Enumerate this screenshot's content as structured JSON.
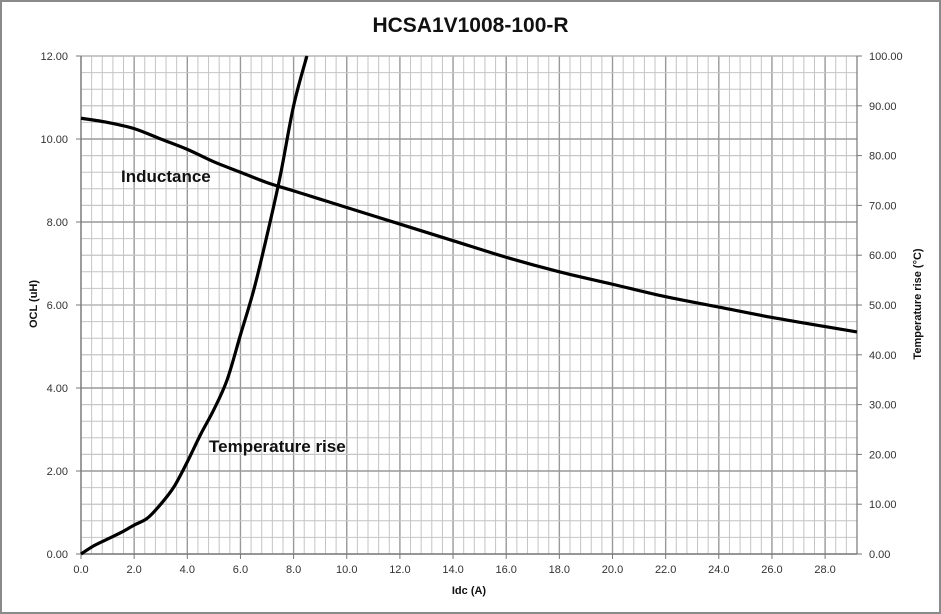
{
  "chart_data": {
    "type": "line",
    "title": "HCSA1V1008-100-R",
    "xlabel": "Idc (A)",
    "ylabel": "OCL (uH)",
    "y2label": "Temperature rise (°C)",
    "xlim": [
      0,
      29.2
    ],
    "ylim": [
      0,
      12
    ],
    "y2lim": [
      0,
      100
    ],
    "grid": true,
    "legend": "none (inline annotations)",
    "x_ticks": [
      "0.0",
      "2.0",
      "4.0",
      "6.0",
      "8.0",
      "10.0",
      "12.0",
      "14.0",
      "16.0",
      "18.0",
      "20.0",
      "22.0",
      "24.0",
      "26.0",
      "28.0"
    ],
    "y_ticks": [
      "0.00",
      "2.00",
      "4.00",
      "6.00",
      "8.00",
      "10.00",
      "12.00"
    ],
    "y2_ticks": [
      "0.00",
      "10.00",
      "20.00",
      "30.00",
      "40.00",
      "50.00",
      "60.00",
      "70.00",
      "80.00",
      "90.00",
      "100.00"
    ],
    "annotations": [
      {
        "text": "Inductance",
        "x": 1.5,
        "y": 9.1
      },
      {
        "text": "Temperature rise",
        "x": 4.8,
        "y": 2.5
      }
    ],
    "series": [
      {
        "name": "Inductance",
        "axis": "left",
        "x": [
          0,
          1,
          2,
          3,
          4,
          5,
          6,
          7,
          8,
          9,
          10,
          12,
          14,
          16,
          18,
          20,
          22,
          24,
          26,
          28,
          29.2
        ],
        "values": [
          10.5,
          10.4,
          10.25,
          10.0,
          9.75,
          9.45,
          9.2,
          8.95,
          8.75,
          8.55,
          8.35,
          7.95,
          7.55,
          7.15,
          6.8,
          6.5,
          6.2,
          5.95,
          5.7,
          5.48,
          5.35
        ]
      },
      {
        "name": "Temperature rise",
        "axis": "right",
        "x": [
          0,
          0.5,
          1,
          1.5,
          2,
          2.5,
          3,
          3.5,
          4,
          4.5,
          5,
          5.5,
          6,
          6.5,
          7,
          7.5,
          8,
          8.5
        ],
        "values": [
          0,
          1.7,
          3.0,
          4.3,
          5.8,
          7.2,
          10.0,
          13.5,
          18.5,
          24.0,
          29.0,
          35.0,
          44.0,
          53.0,
          64.0,
          76.0,
          90.0,
          100.0
        ]
      }
    ]
  },
  "colors": {
    "line": "#000000",
    "grid_major": "#999999",
    "grid_minor": "#c4c4c4",
    "frame": "#8a8a8a"
  }
}
